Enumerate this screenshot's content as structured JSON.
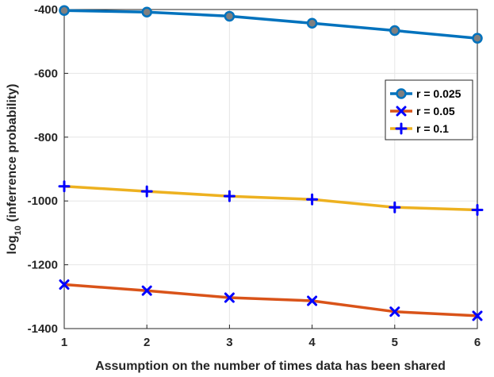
{
  "chart_data": {
    "type": "line",
    "xlabel": "Assumption on the number of times data has been shared",
    "ylabel": "log",
    "ylabel_sub": "10",
    "ylabel_rest": " (inferrence probability)",
    "x": [
      1,
      2,
      3,
      4,
      5,
      6
    ],
    "xlim": [
      1,
      6
    ],
    "ylim": [
      -1400,
      -400
    ],
    "xticks": [
      "1",
      "2",
      "3",
      "4",
      "5",
      "6"
    ],
    "yticks": [
      "-400",
      "-600",
      "-800",
      "-1000",
      "-1200",
      "-1400"
    ],
    "ytick_values": [
      -400,
      -600,
      -800,
      -1000,
      -1200,
      -1400
    ],
    "grid": true,
    "legend_position": "upper-right",
    "series": [
      {
        "name": "r = 0.025",
        "values": [
          -403,
          -408,
          -421,
          -443,
          -466,
          -490
        ],
        "color": "#0072bd",
        "marker": "circle",
        "marker_fill": "#7f7f7f"
      },
      {
        "name": "r = 0.05",
        "values": [
          -1262,
          -1281,
          -1303,
          -1313,
          -1347,
          -1360
        ],
        "color": "#d95319",
        "marker": "x",
        "marker_color": "#0000ff"
      },
      {
        "name": "r = 0.1",
        "values": [
          -954,
          -970,
          -985,
          -995,
          -1020,
          -1028
        ],
        "color": "#edb120",
        "marker": "plus",
        "marker_color": "#0000ff"
      }
    ]
  }
}
